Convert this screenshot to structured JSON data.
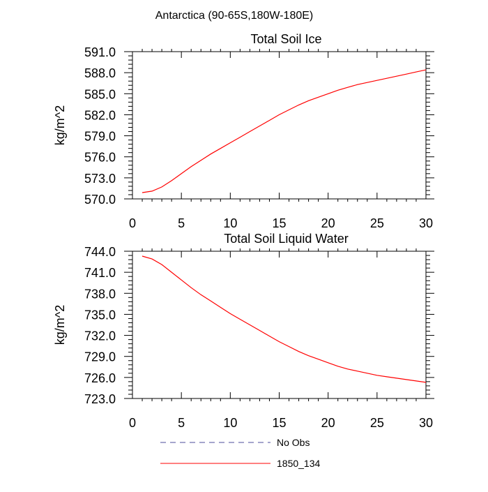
{
  "header": {
    "region": "Antarctica (90-65S,180W-180E)"
  },
  "chart_data": [
    {
      "type": "line",
      "title": "Total Soil Ice",
      "xlabel": "",
      "ylabel": "kg/m^2",
      "xlim": [
        0,
        30
      ],
      "ylim": [
        570,
        591
      ],
      "xticks": [
        0,
        5,
        10,
        15,
        20,
        25,
        30
      ],
      "xtick_labels": [
        "0",
        "5",
        "10",
        "15",
        "20",
        "25",
        "30"
      ],
      "yticks": [
        570,
        573,
        576,
        579,
        582,
        585,
        588,
        591
      ],
      "ytick_labels": [
        "570.0",
        "573.0",
        "576.0",
        "579.0",
        "582.0",
        "585.0",
        "588.0",
        "591.0"
      ],
      "grid": false,
      "series": [
        {
          "name": "1850_134",
          "color": "#ff0000",
          "x": [
            1,
            2,
            3,
            4,
            5,
            6,
            7,
            8,
            9,
            10,
            11,
            12,
            13,
            14,
            15,
            16,
            17,
            18,
            19,
            20,
            21,
            22,
            23,
            24,
            25,
            26,
            27,
            28,
            29,
            30
          ],
          "y": [
            570.9,
            571.1,
            571.7,
            572.6,
            573.6,
            574.6,
            575.5,
            576.4,
            577.2,
            578.0,
            578.8,
            579.6,
            580.4,
            581.2,
            582.0,
            582.7,
            583.4,
            584.0,
            584.5,
            585.0,
            585.5,
            585.9,
            586.3,
            586.6,
            586.9,
            587.2,
            587.5,
            587.8,
            588.1,
            588.4
          ]
        }
      ]
    },
    {
      "type": "line",
      "title": "Total Soil Liquid Water",
      "xlabel": "",
      "ylabel": "kg/m^2",
      "xlim": [
        0,
        30
      ],
      "ylim": [
        723,
        744
      ],
      "xticks": [
        0,
        5,
        10,
        15,
        20,
        25,
        30
      ],
      "xtick_labels": [
        "0",
        "5",
        "10",
        "15",
        "20",
        "25",
        "30"
      ],
      "yticks": [
        723,
        726,
        729,
        732,
        735,
        738,
        741,
        744
      ],
      "ytick_labels": [
        "723.0",
        "726.0",
        "729.0",
        "732.0",
        "735.0",
        "738.0",
        "741.0",
        "744.0"
      ],
      "grid": false,
      "series": [
        {
          "name": "1850_134",
          "color": "#ff0000",
          "x": [
            1,
            2,
            3,
            4,
            5,
            6,
            7,
            8,
            9,
            10,
            11,
            12,
            13,
            14,
            15,
            16,
            17,
            18,
            19,
            20,
            21,
            22,
            23,
            24,
            25,
            26,
            27,
            28,
            29,
            30
          ],
          "y": [
            743.3,
            742.9,
            742.1,
            741.0,
            739.9,
            738.8,
            737.8,
            736.9,
            736.0,
            735.1,
            734.3,
            733.5,
            732.7,
            731.9,
            731.1,
            730.4,
            729.7,
            729.1,
            728.6,
            728.1,
            727.6,
            727.2,
            726.9,
            726.6,
            726.3,
            726.1,
            725.9,
            725.7,
            725.5,
            725.3
          ]
        }
      ]
    }
  ],
  "legend": {
    "placement": "bottom",
    "entries": [
      {
        "label": "No Obs",
        "color": "#4b4b9b",
        "style": "dashed"
      },
      {
        "label": "1850_134",
        "color": "#ff0000",
        "style": "solid"
      }
    ]
  }
}
